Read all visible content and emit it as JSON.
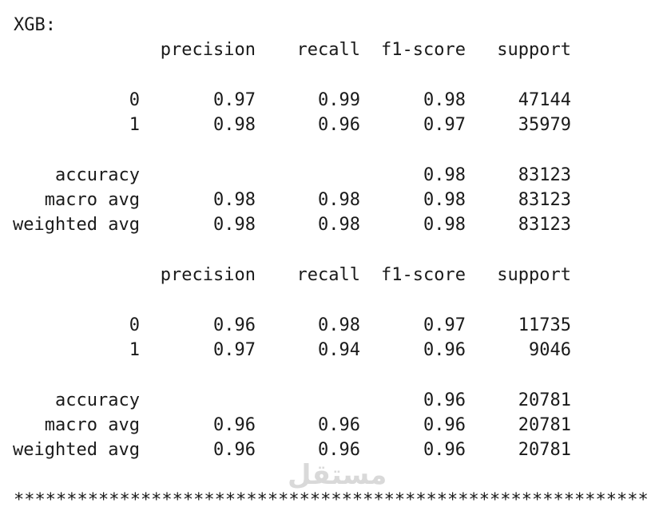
{
  "title": "XGB:",
  "reports": [
    {
      "header": [
        "precision",
        "recall",
        "f1-score",
        "support"
      ],
      "rows": [
        {
          "label": "0",
          "values": [
            0.97,
            0.99,
            0.98,
            47144
          ]
        },
        {
          "label": "1",
          "values": [
            0.98,
            0.96,
            0.97,
            35979
          ]
        },
        {
          "label": "accuracy",
          "values": [
            null,
            null,
            0.98,
            83123
          ]
        },
        {
          "label": "macro avg",
          "values": [
            0.98,
            0.98,
            0.98,
            83123
          ]
        },
        {
          "label": "weighted avg",
          "values": [
            0.98,
            0.98,
            0.98,
            83123
          ]
        }
      ]
    },
    {
      "header": [
        "precision",
        "recall",
        "f1-score",
        "support"
      ],
      "rows": [
        {
          "label": "0",
          "values": [
            0.96,
            0.98,
            0.97,
            11735
          ]
        },
        {
          "label": "1",
          "values": [
            0.97,
            0.94,
            0.96,
            9046
          ]
        },
        {
          "label": "accuracy",
          "values": [
            null,
            null,
            0.96,
            20781
          ]
        },
        {
          "label": "macro avg",
          "values": [
            0.96,
            0.96,
            0.96,
            20781
          ]
        },
        {
          "label": "weighted avg",
          "values": [
            0.96,
            0.96,
            0.96,
            20781
          ]
        }
      ]
    }
  ],
  "separator": "************************************************************",
  "watermark": "مستقل"
}
